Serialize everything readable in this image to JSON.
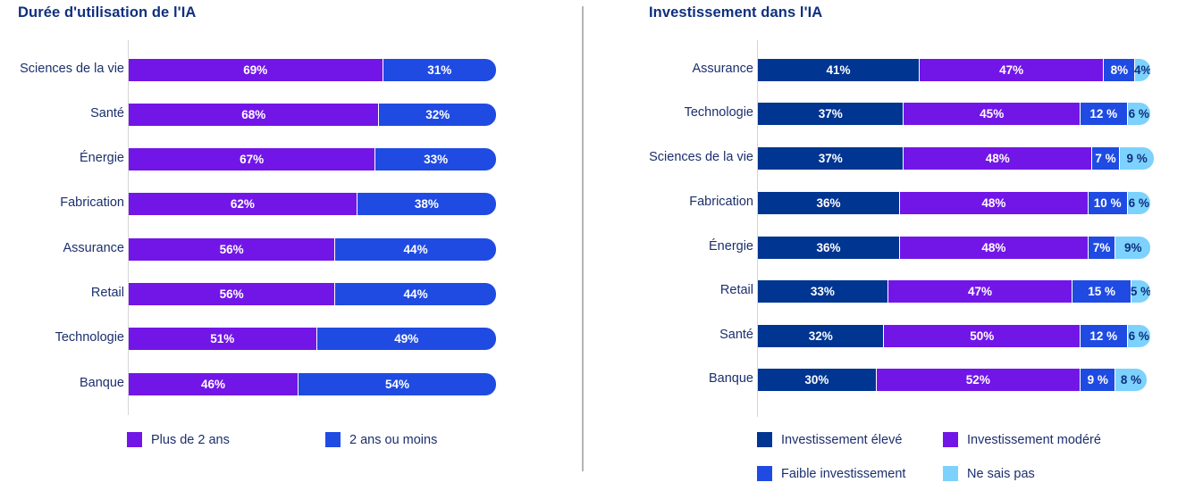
{
  "chart_data": [
    {
      "type": "bar",
      "orientation": "horizontal",
      "stacked": true,
      "title": "Durée d'utilisation de l'IA",
      "xlabel": "",
      "ylabel": "",
      "xlim": [
        0,
        100
      ],
      "grid": false,
      "legend_position": "bottom",
      "categories": [
        "Sciences de la vie",
        "Santé",
        "Énergie",
        "Fabrication",
        "Assurance",
        "Retail",
        "Technologie",
        "Banque"
      ],
      "series": [
        {
          "name": "Plus de 2 ans",
          "color": "#7216e8",
          "values": [
            69,
            68,
            67,
            62,
            56,
            56,
            51,
            46
          ],
          "labels": [
            "69%",
            "68%",
            "67%",
            "62%",
            "56%",
            "56%",
            "51%",
            "46%"
          ]
        },
        {
          "name": "2 ans ou moins",
          "color": "#1f4be3",
          "values": [
            31,
            32,
            33,
            38,
            44,
            44,
            49,
            54
          ],
          "labels": [
            "31%",
            "32%",
            "33%",
            "38%",
            "44%",
            "44%",
            "49%",
            "54%"
          ]
        }
      ]
    },
    {
      "type": "bar",
      "orientation": "horizontal",
      "stacked": true,
      "title": "Investissement dans l'IA",
      "xlabel": "",
      "ylabel": "",
      "xlim": [
        0,
        100
      ],
      "grid": false,
      "legend_position": "bottom",
      "categories": [
        "Assurance",
        "Technologie",
        "Sciences de la vie",
        "Fabrication",
        "Énergie",
        "Retail",
        "Santé",
        "Banque"
      ],
      "series": [
        {
          "name": "Investissement élevé",
          "color": "#003591",
          "values": [
            41,
            37,
            37,
            36,
            36,
            33,
            32,
            30
          ],
          "labels": [
            "41%",
            "37%",
            "37%",
            "36%",
            "36%",
            "33%",
            "32%",
            "30%"
          ]
        },
        {
          "name": "Investissement modéré",
          "color": "#7216e8",
          "values": [
            47,
            45,
            48,
            48,
            48,
            47,
            50,
            52
          ],
          "labels": [
            "47%",
            "45%",
            "48%",
            "48%",
            "48%",
            "47%",
            "50%",
            "52%"
          ]
        },
        {
          "name": "Faible investissement",
          "color": "#1f4be3",
          "values": [
            8,
            12,
            7,
            10,
            7,
            15,
            12,
            9
          ],
          "labels": [
            "8%",
            "12 %",
            "7 %",
            "10 %",
            "7%",
            "15 %",
            "12 %",
            "9 %"
          ]
        },
        {
          "name": "Ne sais pas",
          "color": "#7dd2fd",
          "values": [
            4,
            6,
            9,
            6,
            9,
            5,
            6,
            8
          ],
          "labels": [
            "4%",
            "6 %",
            "9 %",
            "6 %",
            "9%",
            "5 %",
            "6 %",
            "8 %"
          ]
        }
      ]
    }
  ]
}
